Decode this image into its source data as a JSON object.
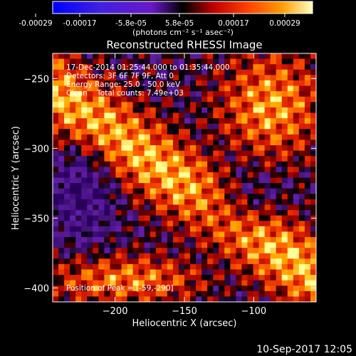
{
  "colorbar": {
    "tick_labels": [
      "-0.00029",
      "-0.00017",
      "-5.8e-05",
      "5.8e-05",
      "0.00017",
      "0.00029"
    ],
    "unit_line": "(photons cm⁻² s⁻¹ asec⁻²)",
    "value_range": [
      -0.00029,
      0.00029
    ]
  },
  "plot": {
    "title": "Reconstructed RHESSI Image",
    "xlabel": "Heliocentric X (arcsec)",
    "ylabel": "Heliocentric Y (arcsec)",
    "x_range": [
      -245,
      -55
    ],
    "y_range": [
      -410,
      -232
    ],
    "x_ticks": [
      {
        "value": -200,
        "label": "−200"
      },
      {
        "value": -150,
        "label": "−150"
      },
      {
        "value": -100,
        "label": "−100"
      }
    ],
    "y_ticks": [
      {
        "value": -250,
        "label": "−250"
      },
      {
        "value": -300,
        "label": "−300"
      },
      {
        "value": -350,
        "label": "−350"
      },
      {
        "value": -400,
        "label": "−400"
      }
    ]
  },
  "annotations": {
    "time_range": "17-Dec-2014 01:25:44.000 to 01:35:44.000",
    "detectors": "Detectors: 3F 6F 7F 9F, Att 0",
    "energy": "Energy Range: 25.0 - 50.0 keV",
    "clean": "Clean    Total counts: 7.49e+03",
    "peak": "Position of Peak = [-59,-290]"
  },
  "footer": {
    "timestamp": "10-Sep-2017 12:05"
  },
  "colors": {
    "background": "#000000",
    "foreground": "#ffffff",
    "colormap": [
      "#0000ff",
      "#6a18c8",
      "#4a148c",
      "#000000",
      "#b00000",
      "#ff5000",
      "#ffa000",
      "#ffff60"
    ]
  }
}
